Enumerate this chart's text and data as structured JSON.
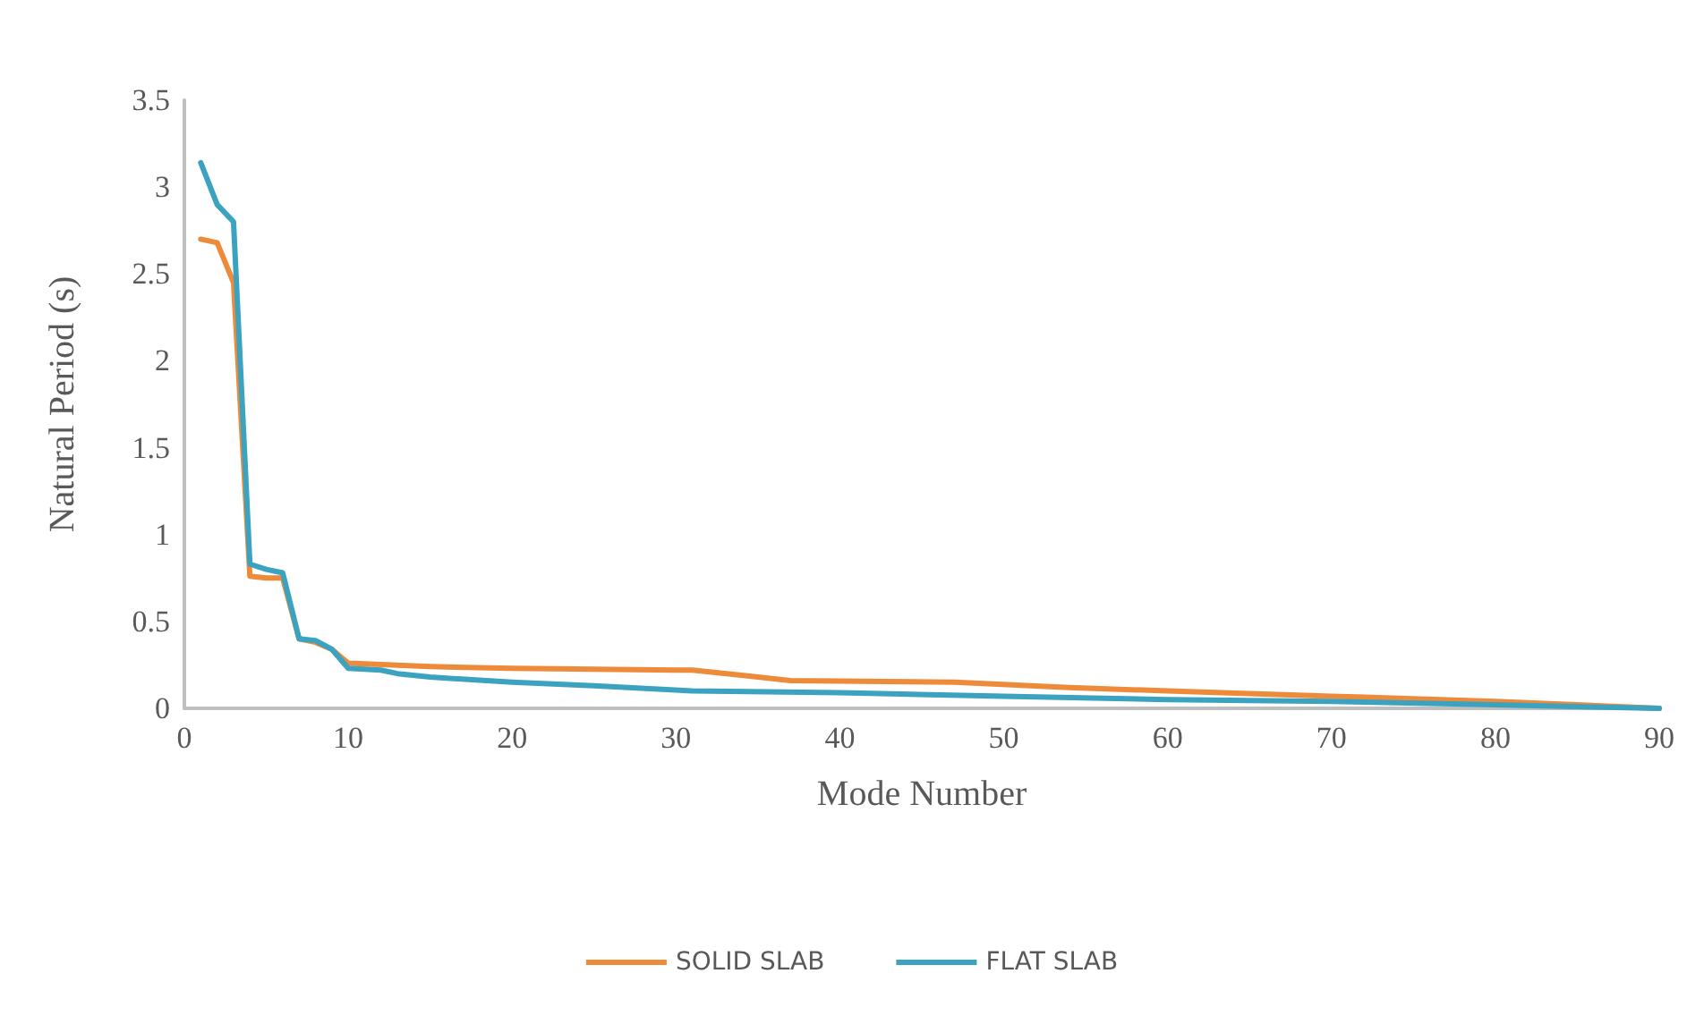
{
  "chart_data": {
    "type": "line",
    "xlabel": "Mode Number",
    "ylabel": "Natural Period (s)",
    "xlim": [
      0,
      90
    ],
    "xticks": [
      0,
      10,
      20,
      30,
      40,
      50,
      60,
      70,
      80,
      90
    ],
    "ylim": [
      0,
      3.5
    ],
    "yticks": [
      0,
      0.5,
      1,
      1.5,
      2,
      2.5,
      3,
      3.5
    ],
    "grid": false,
    "legend": "bottom",
    "marker": "none",
    "line_style": "solid",
    "series": [
      {
        "name": "SOLID SLAB",
        "color": "#ed8b3a",
        "x": [
          1,
          2,
          3,
          4,
          5,
          6,
          7,
          8,
          9,
          10,
          15,
          20,
          30,
          31,
          34,
          37,
          47,
          54,
          60,
          70,
          80,
          90
        ],
        "values": [
          2.7,
          2.68,
          2.45,
          0.76,
          0.75,
          0.75,
          0.4,
          0.38,
          0.34,
          0.26,
          0.24,
          0.23,
          0.22,
          0.22,
          0.19,
          0.16,
          0.15,
          0.12,
          0.1,
          0.07,
          0.04,
          0
        ]
      },
      {
        "name": "FLAT SLAB",
        "color": "#3ba3c0",
        "x": [
          1,
          2,
          3,
          4,
          5,
          6,
          7,
          8,
          9,
          10,
          12,
          13,
          15,
          20,
          25,
          31,
          40,
          50,
          60,
          70,
          80,
          90
        ],
        "values": [
          3.14,
          2.9,
          2.8,
          0.83,
          0.8,
          0.78,
          0.4,
          0.39,
          0.34,
          0.23,
          0.22,
          0.2,
          0.18,
          0.15,
          0.13,
          0.1,
          0.09,
          0.07,
          0.05,
          0.04,
          0.02,
          0
        ]
      }
    ]
  }
}
